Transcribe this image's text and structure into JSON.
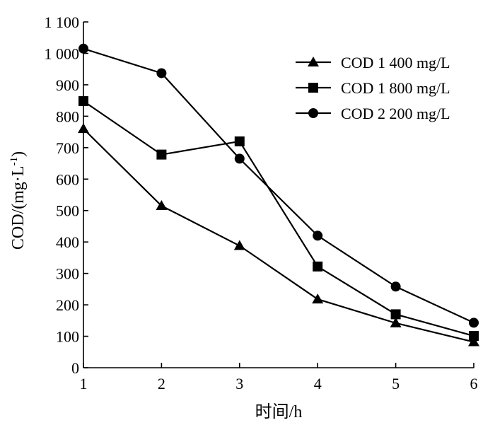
{
  "chart_data": {
    "type": "line",
    "xlabel": "时间/h",
    "ylabel_main": "COD/(mg·L",
    "ylabel_sup": "-1",
    "ylabel_end": ")",
    "x": [
      1,
      2,
      3,
      4,
      5,
      6
    ],
    "x_ticks": [
      "1",
      "2",
      "3",
      "4",
      "5",
      "6"
    ],
    "y_ticks": [
      0,
      100,
      200,
      300,
      400,
      500,
      600,
      700,
      800,
      900,
      1000,
      1100
    ],
    "y_tick_labels": [
      "0",
      "100",
      "200",
      "300",
      "400",
      "500",
      "600",
      "700",
      "800",
      "900",
      "1 000",
      "1 100"
    ],
    "xlim": [
      1,
      6
    ],
    "ylim": [
      0,
      1100
    ],
    "grid": false,
    "legend_position": "top-right",
    "series": [
      {
        "name": "COD 1 400 mg/L",
        "marker": "triangle",
        "values": [
          760,
          515,
          388,
          218,
          142,
          82
        ]
      },
      {
        "name": "COD 1 800 mg/L",
        "marker": "square",
        "values": [
          848,
          678,
          720,
          322,
          170,
          101
        ]
      },
      {
        "name": "COD 2 200 mg/L",
        "marker": "circle",
        "values": [
          1015,
          937,
          665,
          420,
          258,
          143
        ]
      }
    ],
    "colors": {
      "line": "#000000",
      "marker": "#000000"
    }
  }
}
